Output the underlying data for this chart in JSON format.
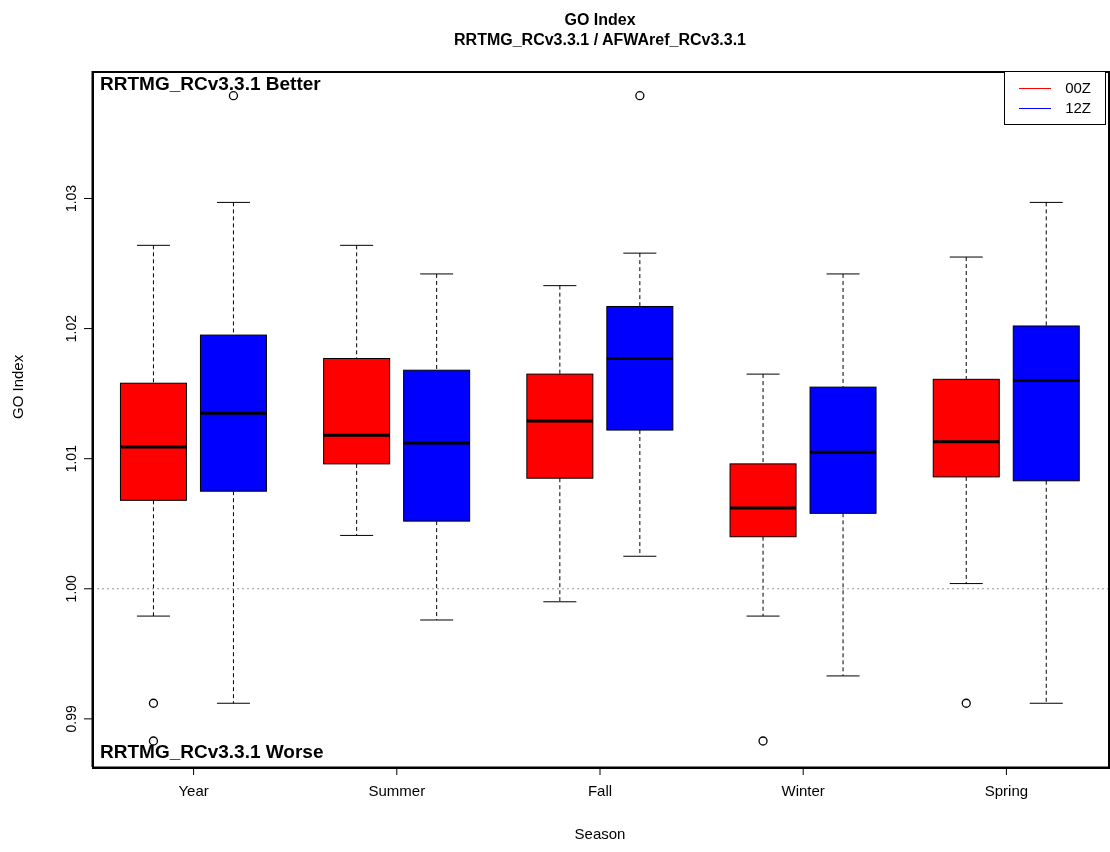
{
  "chart_data": {
    "type": "box",
    "title": "GO Index",
    "subtitle": "RRTMG_RCv3.3.1 / AFWAref_RCv3.3.1",
    "xlabel": "Season",
    "ylabel": "GO Index",
    "categories": [
      "Year",
      "Summer",
      "Fall",
      "Winter",
      "Spring"
    ],
    "ylim": [
      0.9863,
      1.0398
    ],
    "yticks": [
      0.99,
      {
        "value": 1.0,
        "label": "1.00"
      },
      1.01,
      1.02,
      1.03
    ],
    "ref_lines": [
      {
        "axis": "y",
        "value": 1.0,
        "color": "#999999",
        "line_style": "dotted"
      }
    ],
    "annotations": [
      "RRTMG_RCv3.3.1 Better",
      "RRTMG_RCv3.3.1 Worse"
    ],
    "legend": "top right",
    "series": [
      {
        "name": "00Z",
        "color": "#ff0000",
        "boxes": [
          {
            "low": 0.9979,
            "q1": 1.0068,
            "median": 1.0109,
            "q3": 1.0158,
            "high": 1.0264,
            "outliers": [
              0.9912,
              0.9883
            ]
          },
          {
            "low": 1.0041,
            "q1": 1.0096,
            "median": 1.0118,
            "q3": 1.0177,
            "high": 1.0264
          },
          {
            "low": 0.999,
            "q1": 1.0085,
            "median": 1.0129,
            "q3": 1.0165,
            "high": 1.0233
          },
          {
            "low": 0.9979,
            "q1": 1.004,
            "median": 1.0062,
            "q3": 1.0096,
            "high": 1.0165,
            "outliers": [
              0.9883
            ]
          },
          {
            "low": 1.0004,
            "q1": 1.0086,
            "median": 1.0113,
            "q3": 1.0161,
            "high": 1.0255,
            "outliers": [
              0.9912
            ]
          }
        ]
      },
      {
        "name": "12Z",
        "color": "#0000ff",
        "boxes": [
          {
            "low": 0.9912,
            "q1": 1.0075,
            "median": 1.0135,
            "q3": 1.0195,
            "high": 1.0297,
            "outliers": [
              1.0379
            ]
          },
          {
            "low": 0.9976,
            "q1": 1.0052,
            "median": 1.0112,
            "q3": 1.0168,
            "high": 1.0242
          },
          {
            "low": 1.0025,
            "q1": 1.0122,
            "median": 1.0177,
            "q3": 1.0217,
            "high": 1.0258,
            "outliers": [
              1.0379
            ]
          },
          {
            "low": 0.9933,
            "q1": 1.0058,
            "median": 1.0105,
            "q3": 1.0155,
            "high": 1.0242
          },
          {
            "low": 0.9912,
            "q1": 1.0083,
            "median": 1.016,
            "q3": 1.0202,
            "high": 1.0297
          }
        ]
      }
    ]
  }
}
